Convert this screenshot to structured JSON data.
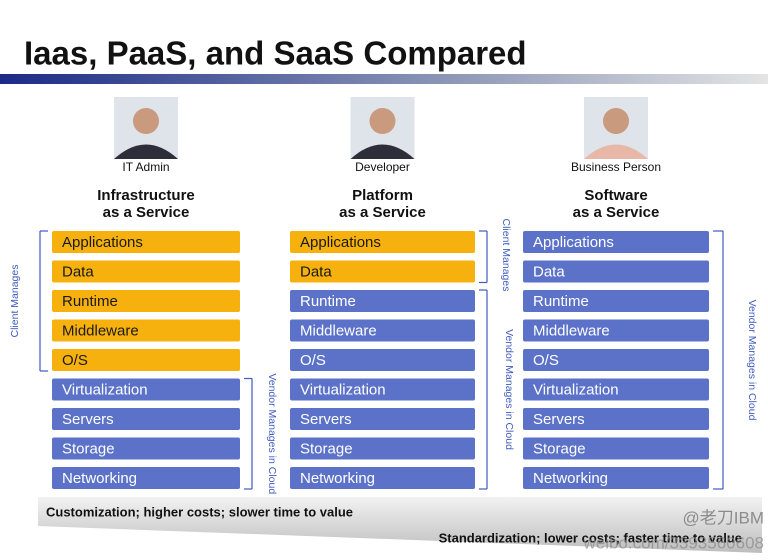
{
  "title": "Iaas, PaaS, and SaaS Compared",
  "columns": [
    {
      "role": "IT Admin",
      "heading": [
        "Infrastructure",
        "as a Service"
      ],
      "layers": [
        "Applications",
        "Data",
        "Runtime",
        "Middleware",
        "O/S",
        "Virtualization",
        "Servers",
        "Storage",
        "Networking"
      ],
      "client_label": "Client Manages",
      "vendor_label": "Vendor Manages in Cloud"
    },
    {
      "role": "Developer",
      "heading": [
        "Platform",
        "as a Service"
      ],
      "layers": [
        "Applications",
        "Data",
        "Runtime",
        "Middleware",
        "O/S",
        "Virtualization",
        "Servers",
        "Storage",
        "Networking"
      ],
      "client_label": "Client Manages",
      "vendor_label": "Vendor Manages in Cloud"
    },
    {
      "role": "Business Person",
      "heading": [
        "Software",
        "as a Service"
      ],
      "layers": [
        "Applications",
        "Data",
        "Runtime",
        "Middleware",
        "O/S",
        "Virtualization",
        "Servers",
        "Storage",
        "Networking"
      ],
      "vendor_label": "Vendor Manages in Cloud"
    }
  ],
  "footer": {
    "left": "Customization;  higher costs;  slower time to value",
    "right": "Standardization;  lower costs;  faster time to value"
  },
  "watermark": {
    "handle": "@老刀IBM",
    "url": "weibo.com/3393560608"
  }
}
